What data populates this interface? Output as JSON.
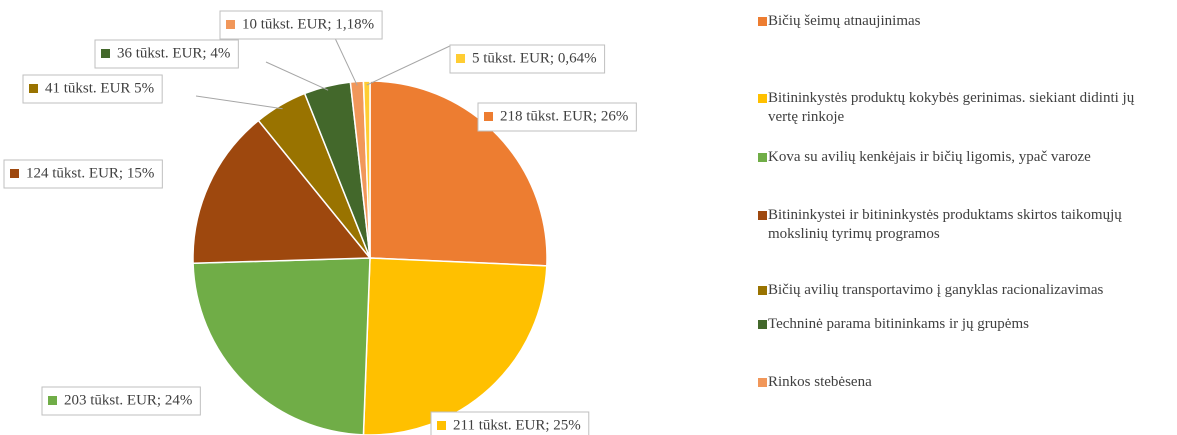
{
  "chart_data": {
    "type": "pie",
    "categories": [
      "Bičių šeimų atnaujinimas",
      "Bitininkystės produktų kokybės gerinimas. siekiant didinti jų vertę rinkoje",
      "Kova su avilių kenkėjais ir bičių ligomis, ypač varoze",
      "Bitininkystei ir bitininkystės produktams skirtos taikomųjų mokslinių tyrimų programos",
      "Bičių avilių transportavimo į ganyklas racionalizavimas",
      "Techninė parama bitininkams ir jų grupėms",
      "Rinkos stebėsena",
      null
    ],
    "values": [
      218,
      211,
      203,
      124,
      41,
      36,
      10,
      5
    ],
    "value_labels": [
      "218 tūkst. EUR; 26%",
      "211 tūkst. EUR; 25%",
      "203 tūkst. EUR; 24%",
      "124 tūkst. EUR; 15%",
      "41 tūkst. EUR 5%",
      "36 tūkst. EUR; 4%",
      "10 tūkst. EUR; 1,18%",
      "5 tūkst. EUR; 0,64%"
    ],
    "colors": [
      "#ed7d31",
      "#ffc000",
      "#70ad47",
      "#9e480e",
      "#997300",
      "#43682b",
      "#f1975a",
      "#ffcd33"
    ],
    "legend": "right"
  }
}
